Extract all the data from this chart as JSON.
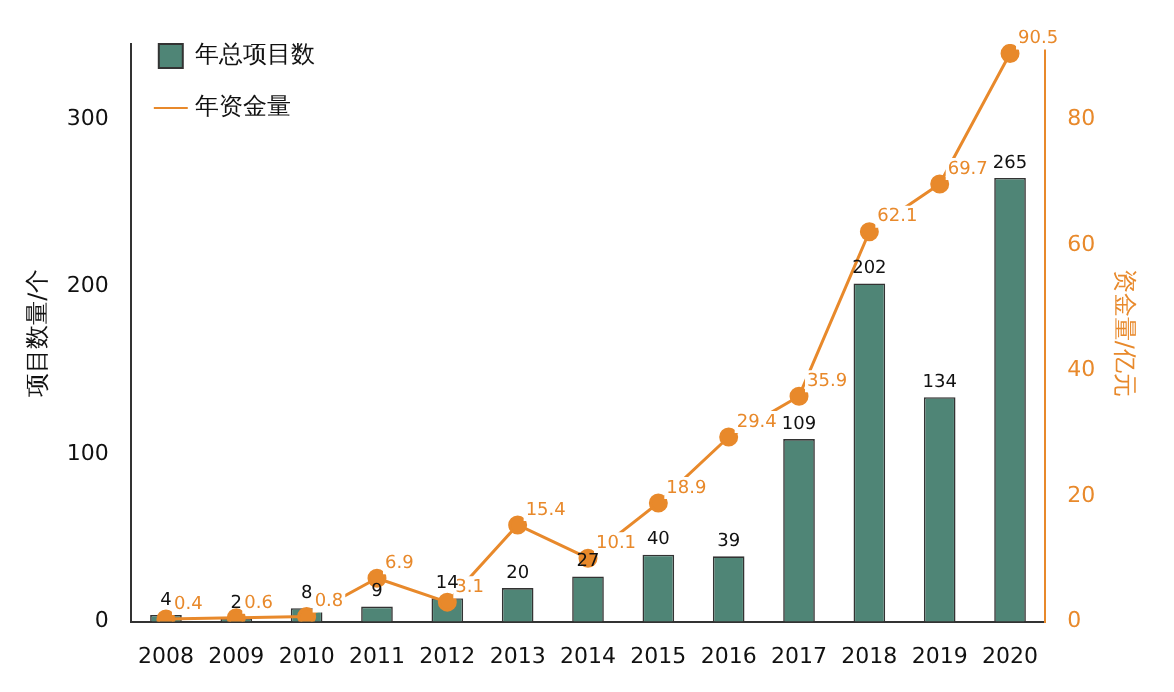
{
  "chart_data": {
    "type": "bar",
    "categories": [
      "2008",
      "2009",
      "2010",
      "2011",
      "2012",
      "2013",
      "2014",
      "2015",
      "2016",
      "2017",
      "2018",
      "2019",
      "2020"
    ],
    "ylabel": "项目数量/个",
    "y2label": "资金量/亿元",
    "series": [
      {
        "name": "年总项目数",
        "color": "#4f8576",
        "values": [
          4,
          2,
          8,
          9,
          14,
          20,
          27,
          40,
          39,
          109,
          202,
          134,
          265
        ]
      },
      {
        "name": "年资金量",
        "type": "line",
        "axis": "y2",
        "color": "#e8892b",
        "values": [
          0.4,
          0.6,
          0.8,
          6.9,
          3.1,
          15.4,
          10.1,
          18.9,
          29.4,
          35.9,
          62.1,
          69.7,
          90.5
        ]
      }
    ],
    "ylim": [
      0,
      345
    ],
    "yticks": [
      0,
      100,
      200,
      300
    ],
    "y2lim": [
      0,
      92
    ],
    "y2ticks": [
      0,
      20,
      40,
      60,
      80
    ],
    "data_labels": true,
    "grid": false,
    "legend": "top left",
    "marker": "circle",
    "line_style": "solid"
  }
}
